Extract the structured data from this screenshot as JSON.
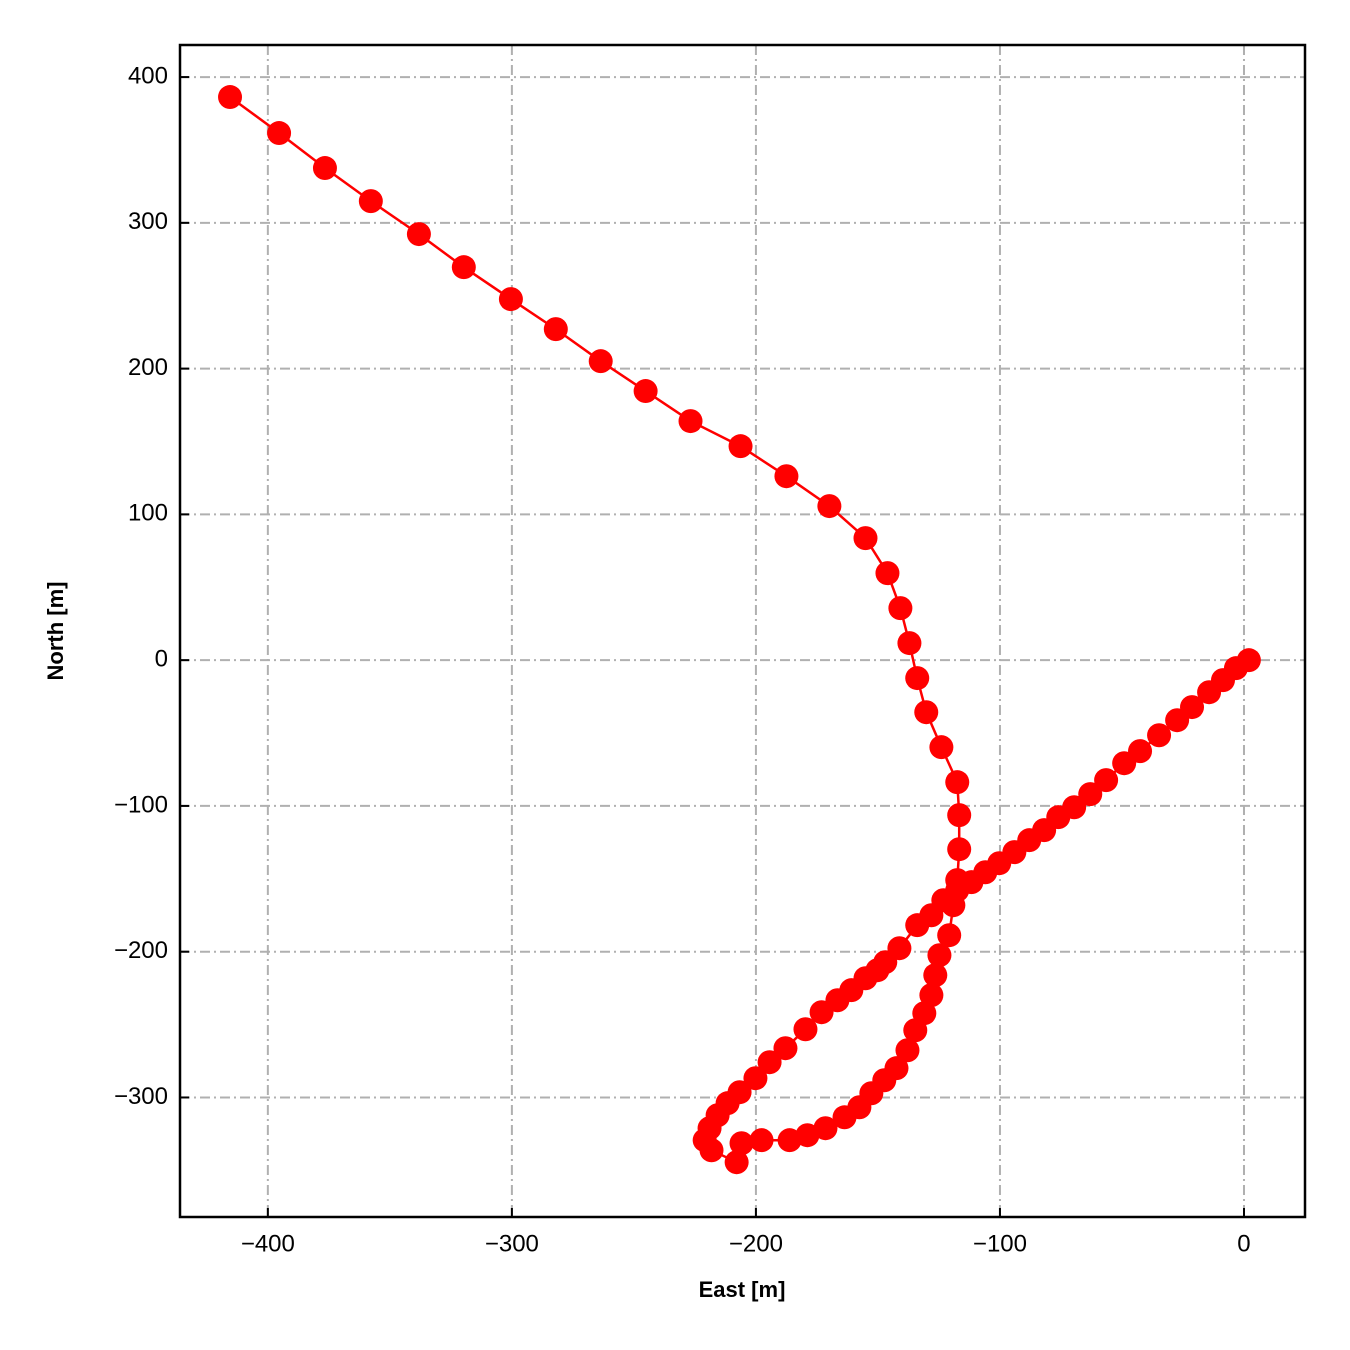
{
  "chart_data": {
    "type": "line",
    "xlabel": "East [m]",
    "ylabel": "North [m]",
    "color": "#ff0000",
    "grid": true,
    "xlim": [
      -436,
      25
    ],
    "ylim": [
      -382,
      422
    ],
    "xticks": [
      {
        "value": -400,
        "label": "−400"
      },
      {
        "value": -300,
        "label": "−300"
      },
      {
        "value": -200,
        "label": "−200"
      },
      {
        "value": -100,
        "label": "−100"
      },
      0
    ],
    "yticks": [
      {
        "value": -300,
        "label": "−300"
      },
      {
        "value": -200,
        "label": "−200"
      },
      {
        "value": -100,
        "label": "−100"
      },
      0,
      100,
      200,
      300,
      400
    ],
    "x": [
      2.0,
      -3.3,
      -8.6,
      -14.3,
      -21.3,
      -27.4,
      -34.8,
      -42.6,
      -49.1,
      -56.5,
      -63.0,
      -69.6,
      -76.1,
      -81.9,
      -88.0,
      -94.1,
      -100.3,
      -106.0,
      -111.7,
      -117.5,
      -123.2,
      -128.1,
      -133.9,
      -141.2,
      -147.0,
      -150.2,
      -155.1,
      -160.9,
      -166.6,
      -173.1,
      -179.7,
      -187.9,
      -194.4,
      -200.2,
      -206.7,
      -211.6,
      -215.7,
      -219.0,
      -221.0,
      -218.2,
      -207.9,
      -205.9,
      -197.7,
      -186.2,
      -178.9,
      -171.5,
      -163.7,
      -157.6,
      -152.7,
      -147.4,
      -142.4,
      -137.9,
      -134.7,
      -131.0,
      -128.1,
      -126.5,
      -124.8,
      -120.8,
      -119.1,
      -117.5,
      -116.7,
      -116.7,
      -117.5,
      -124.0,
      -130.2,
      -133.9,
      -137.1,
      -140.8,
      -146.1,
      -155.1,
      -169.9,
      -187.5,
      -206.3,
      -226.8,
      -245.2,
      -263.6,
      -282.0,
      -300.4,
      -319.7,
      -338.1,
      -357.8,
      -376.6,
      -395.4,
      -415.5
    ],
    "values": [
      0,
      -5.5,
      -13.7,
      -22.0,
      -32.2,
      -41.2,
      -51.5,
      -62.4,
      -70.7,
      -82.3,
      -91.9,
      -100.9,
      -107.7,
      -116.6,
      -123.5,
      -131.7,
      -139.3,
      -145.5,
      -152.3,
      -157.8,
      -164.7,
      -175.0,
      -181.8,
      -197.6,
      -207.2,
      -212.7,
      -218.2,
      -226.4,
      -233.3,
      -241.5,
      -253.2,
      -266.2,
      -275.8,
      -286.8,
      -296.4,
      -303.9,
      -312.2,
      -321.1,
      -329.3,
      -336.2,
      -344.4,
      -331.4,
      -329.3,
      -329.3,
      -325.9,
      -321.1,
      -313.6,
      -306.7,
      -297.1,
      -288.2,
      -279.9,
      -267.6,
      -253.9,
      -242.2,
      -229.8,
      -216.1,
      -202.4,
      -188.7,
      -168.1,
      -150.9,
      -129.7,
      -106.3,
      -83.7,
      -59.7,
      -35.7,
      -12.3,
      11.7,
      35.7,
      59.7,
      83.7,
      105.7,
      126.2,
      146.8,
      164.0,
      184.6,
      205.1,
      227.1,
      247.7,
      269.6,
      292.3,
      314.9,
      337.6,
      361.6,
      386.3
    ]
  }
}
